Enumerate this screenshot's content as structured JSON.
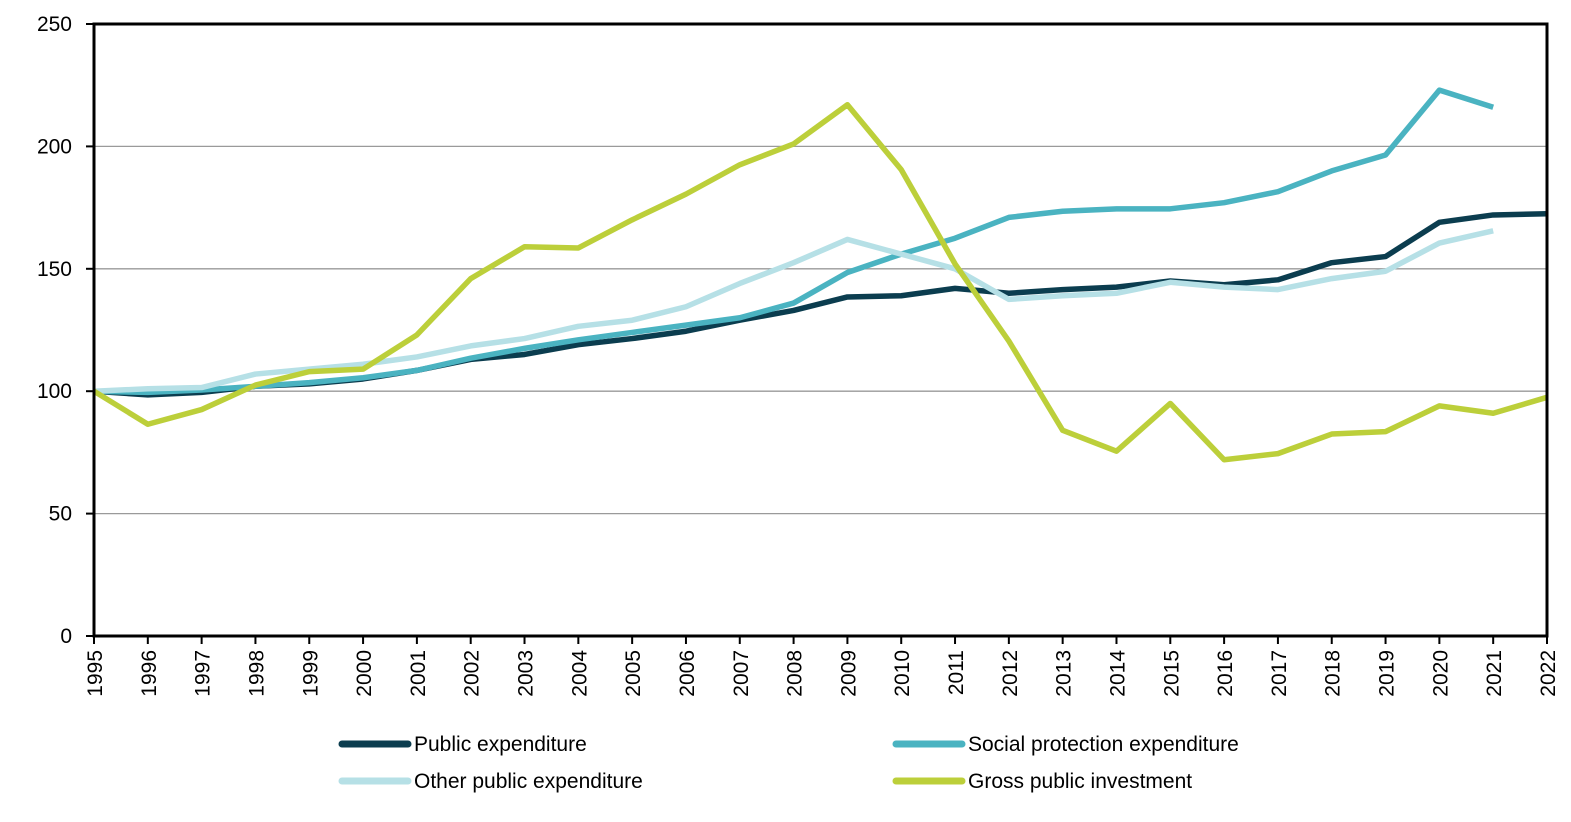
{
  "chart_data": {
    "type": "line",
    "title": "",
    "xlabel": "",
    "ylabel": "",
    "ylim": [
      0,
      250
    ],
    "yticks": [
      0,
      50,
      100,
      150,
      200,
      250
    ],
    "grid": "horizontal",
    "legend_position": "bottom",
    "x": [
      "1995",
      "1996",
      "1997",
      "1998",
      "1999",
      "2000",
      "2001",
      "2002",
      "2003",
      "2004",
      "2005",
      "2006",
      "2007",
      "2008",
      "2009",
      "2010",
      "2011",
      "2012",
      "2013",
      "2014",
      "2015",
      "2016",
      "2017",
      "2018",
      "2019",
      "2020",
      "2021",
      "2022"
    ],
    "series": [
      {
        "name": "Public expenditure",
        "color": "#0b3d4f",
        "values": [
          100,
          98.5,
          99.5,
          102,
          103,
          105,
          108.5,
          113,
          115,
          119,
          121.5,
          124.5,
          129,
          133,
          138.5,
          139,
          142,
          140,
          141.5,
          142.5,
          145,
          143.5,
          145.5,
          152.5,
          155,
          169,
          172,
          172.5
        ]
      },
      {
        "name": "Social protection expenditure",
        "color": "#4ab3c1",
        "values": [
          100,
          99.5,
          100.5,
          102,
          103.5,
          105.5,
          108.5,
          113.5,
          117.5,
          121,
          124,
          127,
          130,
          136,
          148.5,
          156,
          162.5,
          171,
          173.5,
          174.5,
          174.5,
          177,
          181.5,
          190,
          196.5,
          223,
          216,
          null
        ]
      },
      {
        "name": "Other public expenditure",
        "color": "#b6e0e6",
        "values": [
          100,
          101,
          101.5,
          107,
          109,
          111,
          114,
          118.5,
          121.5,
          126.5,
          129,
          134.5,
          144,
          152.5,
          162,
          156,
          150,
          137.5,
          139,
          140,
          144.5,
          142.5,
          141.5,
          146,
          149,
          160.5,
          165.5,
          null
        ]
      },
      {
        "name": "Gross public investment",
        "color": "#bccf3a",
        "values": [
          100,
          86.5,
          92.5,
          102.5,
          108,
          109,
          123,
          146,
          159,
          158.5,
          170,
          180.5,
          192.5,
          201,
          217,
          190.5,
          152,
          120.5,
          84,
          75.5,
          95,
          72,
          74.5,
          82.5,
          83.5,
          94,
          91,
          97.5
        ]
      }
    ]
  }
}
